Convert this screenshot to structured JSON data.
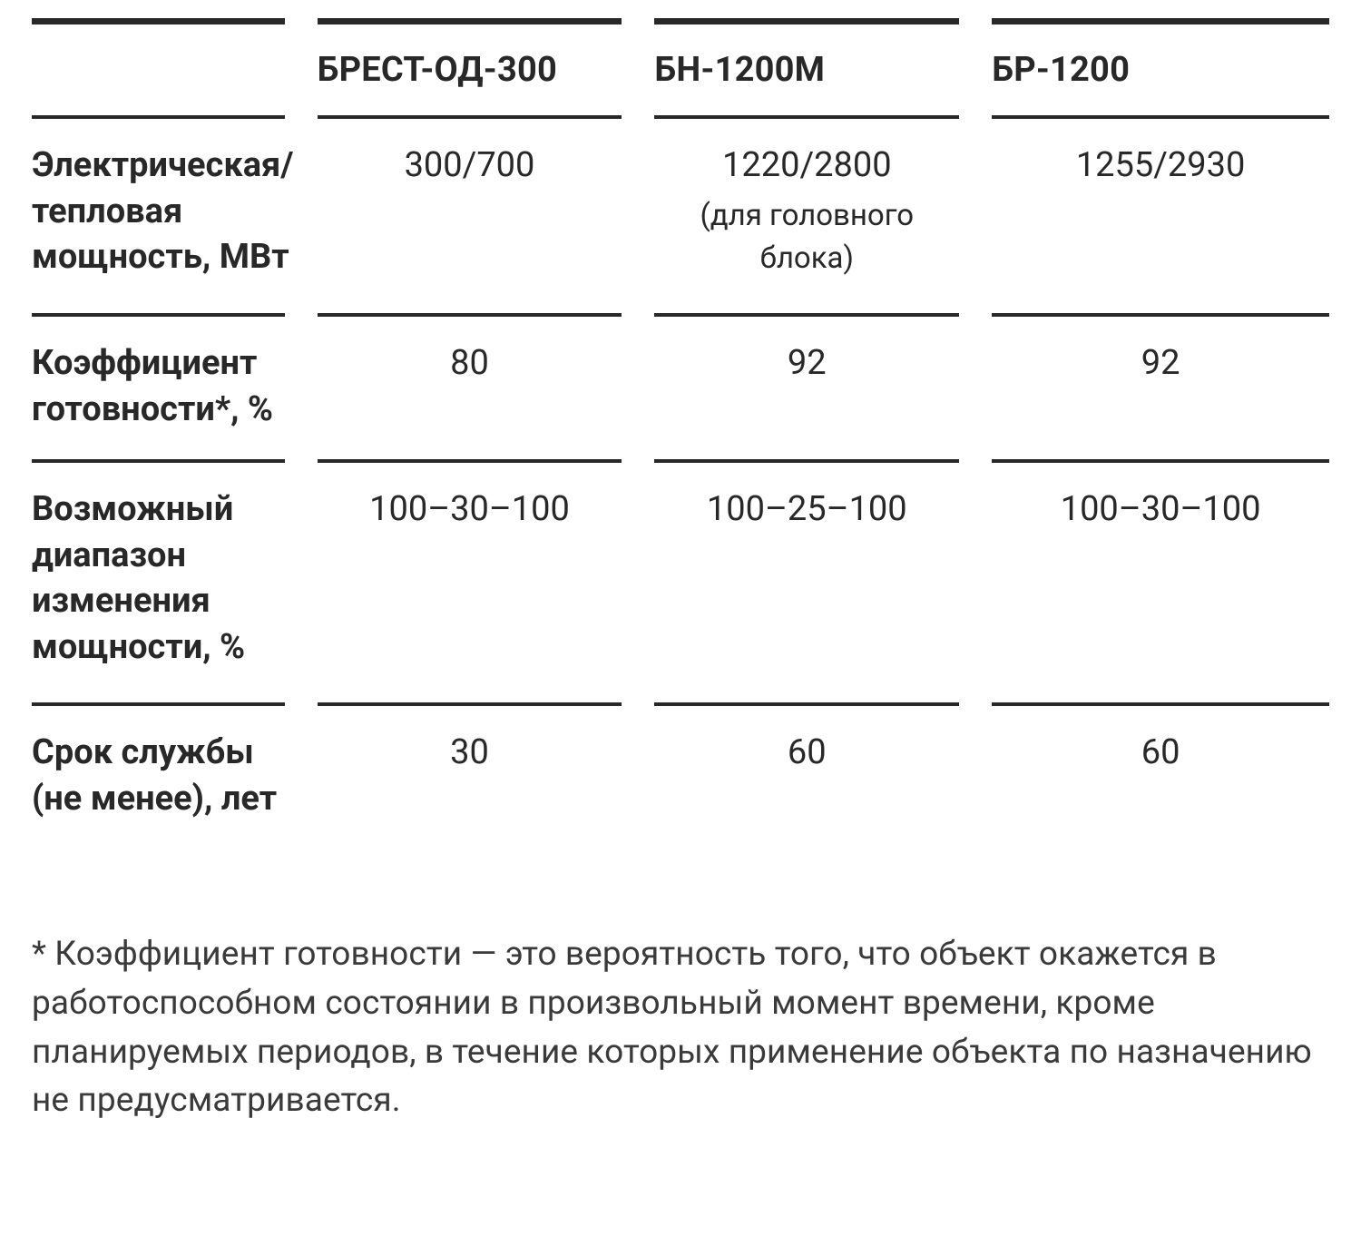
{
  "table": {
    "type": "table",
    "columns": [
      "",
      "БРЕСТ-ОД-300",
      "БН-1200М",
      "БР-1200"
    ],
    "rule_thick_color": "#282828",
    "rule_thin_color": "#282828",
    "header_fontsize": 38,
    "header_fontweight": 700,
    "label_fontsize": 38,
    "label_fontweight": 700,
    "data_fontsize": 38,
    "data_fontweight": 400,
    "subnote_fontsize": 33,
    "text_color": "#282828",
    "background_color": "#ffffff",
    "column_widths_pct": [
      22,
      26,
      26,
      26
    ],
    "rows": [
      {
        "label": "Электриче­ская/тепловая мощность, МВт",
        "values": [
          "300/700",
          "1220/2800",
          "1255/2930"
        ],
        "subnotes": [
          "",
          "(для головного блока)",
          ""
        ]
      },
      {
        "label": "Коэффициент готовности*, %",
        "values": [
          "80",
          "92",
          "92"
        ],
        "subnotes": [
          "",
          "",
          ""
        ]
      },
      {
        "label": "Возможный диапазон изменения мощности, %",
        "values": [
          "100–30–100",
          "100–25–100",
          "100–30–100"
        ],
        "subnotes": [
          "",
          "",
          ""
        ]
      },
      {
        "label": "Срок службы (не менее), лет",
        "values": [
          "30",
          "60",
          "60"
        ],
        "subnotes": [
          "",
          "",
          ""
        ]
      }
    ]
  },
  "footnote": "* Коэффициент готовности — это вероятность того, что объект окажется в работоспособном состоянии в произвольный момент времени, кроме планируемых периодов, в течение которых примене­ние объекта по назначению не предусматривается."
}
